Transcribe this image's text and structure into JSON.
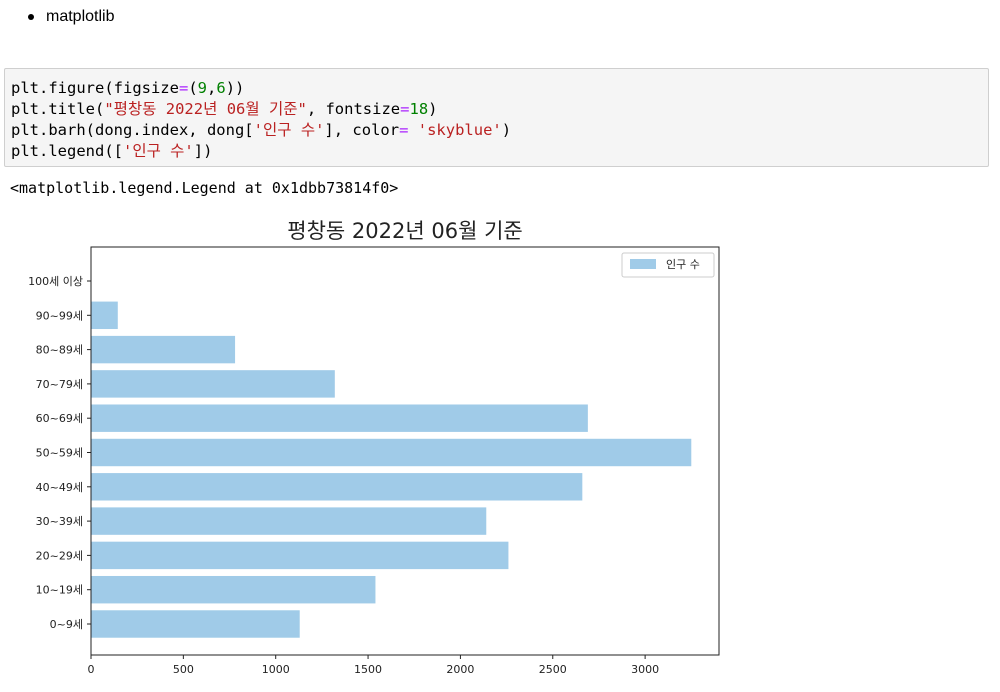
{
  "markdown": {
    "bullet_text": "matplotlib"
  },
  "code_cell": {
    "line1": {
      "a": "plt.figure(figsize",
      "b": "=",
      "c": "(",
      "d": "9",
      "e": ",",
      "f": "6",
      "g": "))"
    },
    "line2": {
      "a": "plt.title(",
      "b": "\"평창동 2022년 06월 기준\"",
      "c": ", fontsize",
      "d": "=",
      "e": "18",
      "f": ")"
    },
    "line3": {
      "a": "plt.barh(dong.index, dong[",
      "b": "'인구 수'",
      "c": "], color",
      "d": "=",
      "e": " ",
      "f": "'skyblue'",
      "g": ")"
    },
    "line4": {
      "a": "plt.legend([",
      "b": "'인구 수'",
      "c": "])"
    }
  },
  "output_text": "<matplotlib.legend.Legend at 0x1dbb73814f0>",
  "chart_data": {
    "type": "bar",
    "orientation": "horizontal",
    "title": "평창동 2022년 06월 기준",
    "categories": [
      "0~9세",
      "10~19세",
      "20~29세",
      "30~39세",
      "40~49세",
      "50~59세",
      "60~69세",
      "70~79세",
      "80~89세",
      "90~99세",
      "100세 이상"
    ],
    "series": [
      {
        "name": "인구 수",
        "values": [
          1130,
          1540,
          2260,
          2140,
          2660,
          3250,
          2690,
          1320,
          780,
          145,
          0
        ],
        "color": "#a0cbe8"
      }
    ],
    "xlim": [
      0,
      3400
    ],
    "xticks": [
      0,
      500,
      1000,
      1500,
      2000,
      2500,
      3000
    ],
    "xlabel": "",
    "ylabel": "",
    "legend": "top-right",
    "grid": false
  }
}
